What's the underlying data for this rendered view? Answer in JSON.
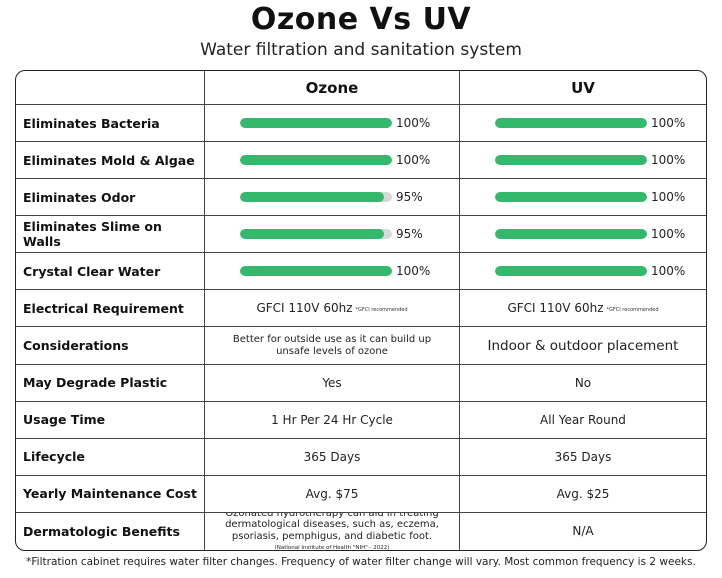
{
  "header": {
    "title": "Ozone Vs UV",
    "subtitle": "Water filtration and sanitation system"
  },
  "table": {
    "columns": [
      "",
      "Ozone",
      "UV"
    ],
    "bar_color": "#34b96c",
    "rows": [
      {
        "label": "Eliminates Bacteria",
        "type": "bar",
        "ozone": {
          "value": 100,
          "text": "100%"
        },
        "uv": {
          "value": 100,
          "text": "100%"
        }
      },
      {
        "label": "Eliminates Mold & Algae",
        "type": "bar",
        "ozone": {
          "value": 100,
          "text": "100%"
        },
        "uv": {
          "value": 100,
          "text": "100%"
        }
      },
      {
        "label": "Eliminates Odor",
        "type": "bar",
        "ozone": {
          "value": 95,
          "text": "95%"
        },
        "uv": {
          "value": 100,
          "text": "100%"
        }
      },
      {
        "label": "Eliminates Slime on Walls",
        "type": "bar",
        "ozone": {
          "value": 95,
          "text": "95%"
        },
        "uv": {
          "value": 100,
          "text": "100%"
        }
      },
      {
        "label": "Crystal Clear Water",
        "type": "bar",
        "ozone": {
          "value": 100,
          "text": "100%"
        },
        "uv": {
          "value": 100,
          "text": "100%"
        }
      },
      {
        "label": "Electrical Requirement",
        "type": "gfci",
        "ozone": {
          "text": "GFCI 110V 60hz",
          "note": "*GFCI recommended"
        },
        "uv": {
          "text": "GFCI 110V 60hz",
          "note": "*GFCI recommended"
        }
      },
      {
        "label": "Considerations",
        "type": "text",
        "ozone": {
          "text": "Better for outside use as it can build up unsafe levels of ozone",
          "small": true
        },
        "uv": {
          "text": "Indoor & outdoor placement",
          "large": true
        }
      },
      {
        "label": "May Degrade Plastic",
        "type": "text",
        "ozone": {
          "text": "Yes"
        },
        "uv": {
          "text": "No"
        }
      },
      {
        "label": "Usage Time",
        "type": "text",
        "ozone": {
          "text": "1 Hr Per 24 Hr Cycle"
        },
        "uv": {
          "text": "All Year Round"
        }
      },
      {
        "label": "Lifecycle",
        "type": "text",
        "ozone": {
          "text": "365 Days"
        },
        "uv": {
          "text": "365 Days"
        }
      },
      {
        "label": "Yearly Maintenance Cost",
        "type": "text",
        "ozone": {
          "text": "Avg. $75"
        },
        "uv": {
          "text": "Avg. $25"
        }
      },
      {
        "label": "Dermatologic Benefits",
        "type": "text",
        "ozone": {
          "text": "Ozonated hydrotherapy can aid in treating dermatological diseases, such as, eczema, psoriasis, pemphigus, and diabetic foot.",
          "source": "(National Institute of Health \"NIH\" - 2022)",
          "small": true
        },
        "uv": {
          "text": "N/A"
        }
      }
    ]
  },
  "footnote": "*Filtration cabinet requires water filter changes. Frequency of water filter change will vary. Most common frequency is 2 weeks."
}
